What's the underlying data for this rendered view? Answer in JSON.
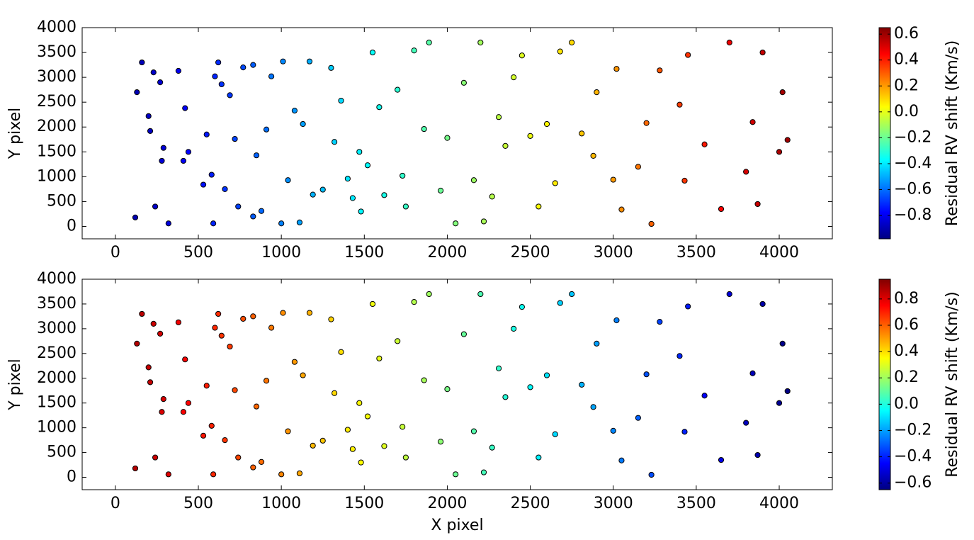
{
  "chart_data": [
    {
      "type": "scatter",
      "colormap": "jet",
      "ylabel": "Y pixel",
      "xlim": [
        -200,
        4320
      ],
      "ylim": [
        -250,
        4000
      ],
      "xticks": [
        0,
        500,
        1000,
        1500,
        2000,
        2500,
        3000,
        3500,
        4000
      ],
      "yticks": [
        0,
        500,
        1000,
        1500,
        2000,
        2500,
        3000,
        3500,
        4000
      ],
      "x": [
        120,
        130,
        160,
        200,
        210,
        230,
        240,
        270,
        280,
        290,
        320,
        380,
        410,
        420,
        440,
        530,
        550,
        580,
        590,
        600,
        620,
        640,
        660,
        690,
        720,
        740,
        770,
        830,
        830,
        850,
        880,
        910,
        940,
        1000,
        1010,
        1040,
        1080,
        1110,
        1130,
        1170,
        1190,
        1250,
        1300,
        1320,
        1360,
        1400,
        1430,
        1470,
        1480,
        1520,
        1550,
        1590,
        1620,
        1700,
        1730,
        1750,
        1800,
        1860,
        1890,
        1960,
        2000,
        2050,
        2100,
        2160,
        2200,
        2220,
        2270,
        2310,
        2350,
        2400,
        2450,
        2500,
        2550,
        2600,
        2650,
        2680,
        2750,
        2810,
        2880,
        2900,
        3000,
        3020,
        3050,
        3150,
        3200,
        3230,
        3280,
        3400,
        3430,
        3450,
        3550,
        3650,
        3700,
        3800,
        3840,
        3870,
        3900,
        4000,
        4020,
        4050
      ],
      "y": [
        180,
        2700,
        3300,
        2220,
        1920,
        3100,
        400,
        2900,
        1320,
        1580,
        60,
        3130,
        1320,
        2380,
        1500,
        840,
        1850,
        1040,
        60,
        3020,
        3300,
        2860,
        750,
        2640,
        1760,
        400,
        3200,
        3250,
        200,
        1430,
        310,
        1950,
        3020,
        60,
        3320,
        930,
        2330,
        80,
        2060,
        3320,
        640,
        740,
        3190,
        1700,
        2530,
        960,
        570,
        1500,
        300,
        1230,
        3500,
        2400,
        630,
        2750,
        1020,
        400,
        3540,
        1960,
        3700,
        720,
        1780,
        60,
        2890,
        930,
        3700,
        100,
        600,
        2200,
        1620,
        3000,
        3440,
        1820,
        400,
        2060,
        870,
        3520,
        3700,
        1870,
        1420,
        2700,
        940,
        3170,
        340,
        1200,
        2080,
        50,
        3140,
        2450,
        920,
        3450,
        1650,
        350,
        3700,
        1100,
        2100,
        450,
        3500,
        1500,
        2700,
        1740
      ],
      "color_values": [
        -0.9,
        -0.9,
        -0.89,
        -0.87,
        -0.87,
        -0.86,
        -0.86,
        -0.85,
        -0.84,
        -0.84,
        -0.83,
        -0.8,
        -0.79,
        -0.79,
        -0.78,
        -0.75,
        -0.74,
        -0.73,
        -0.72,
        -0.72,
        -0.71,
        -0.7,
        -0.7,
        -0.69,
        -0.67,
        -0.67,
        -0.66,
        -0.63,
        -0.63,
        -0.62,
        -0.61,
        -0.6,
        -0.59,
        -0.57,
        -0.56,
        -0.55,
        -0.54,
        -0.52,
        -0.52,
        -0.5,
        -0.49,
        -0.47,
        -0.45,
        -0.44,
        -0.43,
        -0.41,
        -0.4,
        -0.39,
        -0.38,
        -0.37,
        -0.36,
        -0.34,
        -0.33,
        -0.3,
        -0.29,
        -0.28,
        -0.26,
        -0.24,
        -0.23,
        -0.2,
        -0.18,
        -0.16,
        -0.15,
        -0.12,
        -0.11,
        -0.1,
        -0.08,
        -0.07,
        -0.05,
        -0.03,
        -0.01,
        0.01,
        0.03,
        0.05,
        0.07,
        0.08,
        0.1,
        0.13,
        0.15,
        0.16,
        0.2,
        0.21,
        0.22,
        0.26,
        0.28,
        0.29,
        0.31,
        0.35,
        0.36,
        0.37,
        0.41,
        0.45,
        0.47,
        0.51,
        0.52,
        0.53,
        0.54,
        0.58,
        0.59,
        0.6
      ],
      "colorbar": {
        "label": "Residual RV shift (Km/s)",
        "lim": [
          -0.98,
          0.65
        ],
        "ticks": [
          {
            "value": -0.8,
            "label": "−0.8"
          },
          {
            "value": -0.6,
            "label": "−0.6"
          },
          {
            "value": -0.4,
            "label": "−0.4"
          },
          {
            "value": -0.2,
            "label": "−0.2"
          },
          {
            "value": 0,
            "label": "0.0"
          },
          0.2,
          0.4,
          0.6
        ]
      }
    },
    {
      "type": "scatter",
      "colormap": "jet",
      "ylabel": "Y pixel",
      "xlabel": "X pixel",
      "xlim": [
        -200,
        4320
      ],
      "ylim": [
        -250,
        4000
      ],
      "xticks": [
        0,
        500,
        1000,
        1500,
        2000,
        2500,
        3000,
        3500,
        4000
      ],
      "yticks": [
        0,
        500,
        1000,
        1500,
        2000,
        2500,
        3000,
        3500,
        4000
      ],
      "x": [
        120,
        130,
        160,
        200,
        210,
        230,
        240,
        270,
        280,
        290,
        320,
        380,
        410,
        420,
        440,
        530,
        550,
        580,
        590,
        600,
        620,
        640,
        660,
        690,
        720,
        740,
        770,
        830,
        830,
        850,
        880,
        910,
        940,
        1000,
        1010,
        1040,
        1080,
        1110,
        1130,
        1170,
        1190,
        1250,
        1300,
        1320,
        1360,
        1400,
        1430,
        1470,
        1480,
        1520,
        1550,
        1590,
        1620,
        1700,
        1730,
        1750,
        1800,
        1860,
        1890,
        1960,
        2000,
        2050,
        2100,
        2160,
        2200,
        2220,
        2270,
        2310,
        2350,
        2400,
        2450,
        2500,
        2550,
        2600,
        2650,
        2680,
        2750,
        2810,
        2880,
        2900,
        3000,
        3020,
        3050,
        3150,
        3200,
        3230,
        3280,
        3400,
        3430,
        3450,
        3550,
        3650,
        3700,
        3800,
        3840,
        3870,
        3900,
        4000,
        4020,
        4050
      ],
      "y": [
        180,
        2700,
        3300,
        2220,
        1920,
        3100,
        400,
        2900,
        1320,
        1580,
        60,
        3130,
        1320,
        2380,
        1500,
        840,
        1850,
        1040,
        60,
        3020,
        3300,
        2860,
        750,
        2640,
        1760,
        400,
        3200,
        3250,
        200,
        1430,
        310,
        1950,
        3020,
        60,
        3320,
        930,
        2330,
        80,
        2060,
        3320,
        640,
        740,
        3190,
        1700,
        2530,
        960,
        570,
        1500,
        300,
        1230,
        3500,
        2400,
        630,
        2750,
        1020,
        400,
        3540,
        1960,
        3700,
        720,
        1780,
        60,
        2890,
        930,
        3700,
        100,
        600,
        2200,
        1620,
        3000,
        3440,
        1820,
        400,
        2060,
        870,
        3520,
        3700,
        1870,
        1420,
        2700,
        940,
        3170,
        340,
        1200,
        2080,
        50,
        3140,
        2450,
        920,
        3450,
        1650,
        350,
        3700,
        1100,
        2100,
        450,
        3500,
        1500,
        2700,
        1740
      ],
      "color_values": [
        0.87,
        0.87,
        0.86,
        0.84,
        0.84,
        0.83,
        0.83,
        0.82,
        0.81,
        0.81,
        0.8,
        0.77,
        0.76,
        0.76,
        0.75,
        0.72,
        0.71,
        0.7,
        0.69,
        0.69,
        0.68,
        0.67,
        0.67,
        0.66,
        0.64,
        0.64,
        0.63,
        0.6,
        0.6,
        0.59,
        0.58,
        0.57,
        0.56,
        0.54,
        0.53,
        0.52,
        0.51,
        0.49,
        0.49,
        0.47,
        0.46,
        0.44,
        0.42,
        0.41,
        0.4,
        0.38,
        0.37,
        0.36,
        0.35,
        0.34,
        0.33,
        0.31,
        0.3,
        0.27,
        0.26,
        0.25,
        0.23,
        0.21,
        0.2,
        0.17,
        0.14,
        0.12,
        0.11,
        0.08,
        0.07,
        0.06,
        0.04,
        0.03,
        0.01,
        -0.01,
        -0.03,
        -0.05,
        -0.07,
        -0.09,
        -0.11,
        -0.12,
        -0.14,
        -0.17,
        -0.19,
        -0.2,
        -0.24,
        -0.25,
        -0.26,
        -0.3,
        -0.32,
        -0.33,
        -0.35,
        -0.39,
        -0.4,
        -0.41,
        -0.45,
        -0.49,
        -0.51,
        -0.55,
        -0.56,
        -0.57,
        -0.58,
        -0.62,
        -0.63,
        -0.64
      ],
      "colorbar": {
        "label": "Residual RV shift (Km/s)",
        "lim": [
          -0.65,
          0.95
        ],
        "ticks": [
          {
            "value": -0.6,
            "label": "−0.6"
          },
          {
            "value": -0.4,
            "label": "−0.4"
          },
          {
            "value": -0.2,
            "label": "−0.2"
          },
          {
            "value": 0,
            "label": "0.0"
          },
          0.2,
          0.4,
          0.6,
          0.8
        ]
      }
    }
  ]
}
